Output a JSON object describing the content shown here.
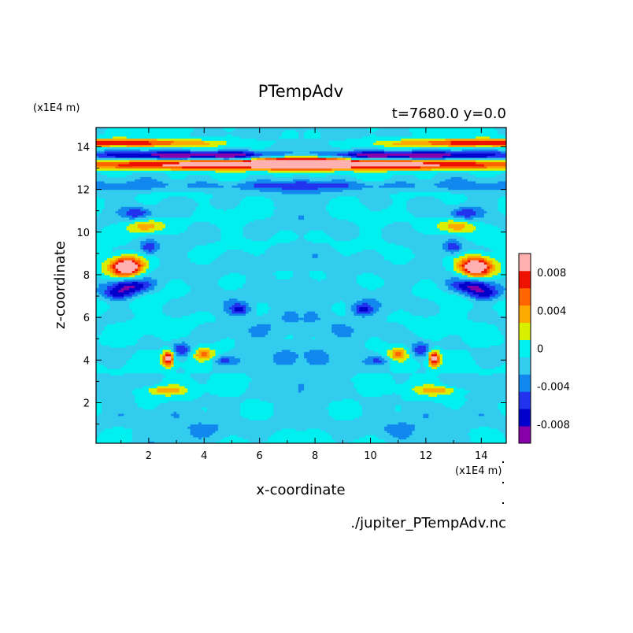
{
  "chart_data": {
    "type": "heatmap",
    "title": "PTempAdv",
    "subtitle": "t=7680.0 y=0.0",
    "xlabel": "x-coordinate",
    "ylabel": "z-coordinate",
    "x_unit": "(x1E4 m)",
    "y_unit": "(x1E4 m)",
    "source_file": "./jupiter_PTempAdv.nc",
    "xlim": [
      0.1,
      14.9
    ],
    "ylim": [
      0.1,
      14.9
    ],
    "x_ticks": [
      2,
      4,
      6,
      8,
      10,
      12,
      14
    ],
    "y_ticks": [
      2,
      4,
      6,
      8,
      10,
      12,
      14
    ],
    "colorbar": {
      "tick_labels": [
        "0.008",
        "0.004",
        "0",
        "-0.004",
        "-0.008"
      ],
      "tick_values": [
        0.008,
        0.004,
        0,
        -0.004,
        -0.008
      ],
      "levels": [
        -0.01,
        -0.008,
        -0.006,
        -0.004,
        -0.002,
        0,
        0.002,
        0.004,
        0.006,
        0.008,
        0.01
      ],
      "colors": [
        "#8800aa",
        "#0000cc",
        "#2233ee",
        "#1188ee",
        "#33ccee",
        "#00f0f0",
        "#d8f000",
        "#ffaa00",
        "#ff6600",
        "#ee1100",
        "#ffb0b0"
      ]
    },
    "grid": false,
    "legend_position": "right",
    "field_features": [
      {
        "desc": "strong positive/negative band near top",
        "z_range": [
          12.5,
          14.5
        ],
        "x_range": [
          0.1,
          14.9
        ],
        "value": 0.01
      },
      {
        "desc": "positive lobes left and right",
        "z": 8.2,
        "x": [
          1.5,
          13.5
        ],
        "value": 0.009
      },
      {
        "desc": "small positive spots",
        "z": 4.2,
        "x": [
          2.8,
          12.1
        ],
        "value": 0.008
      },
      {
        "desc": "background slightly negative/positive mix",
        "value_range": [
          -0.002,
          0.002
        ]
      }
    ]
  },
  "colors": {
    "axis": "#000000",
    "background": "#ffffff"
  }
}
